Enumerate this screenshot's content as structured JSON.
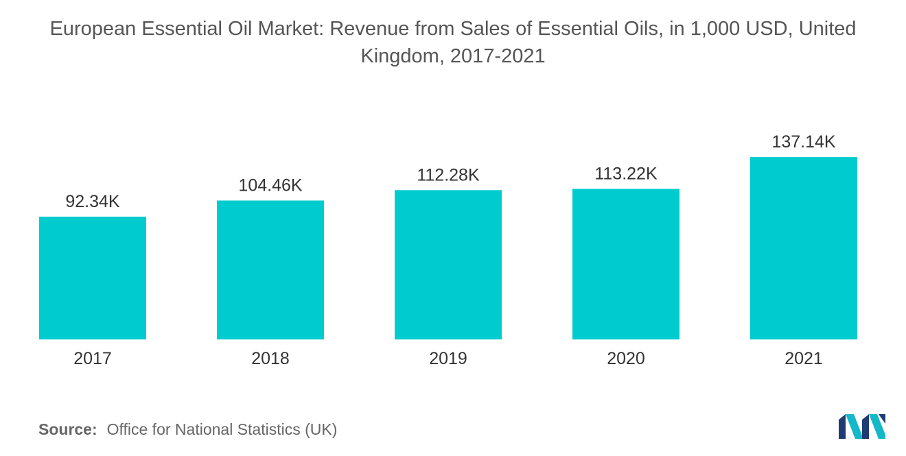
{
  "title": "European Essential Oil Market: Revenue from Sales of Essential Oils, in 1,000 USD, United Kingdom, 2017-2021",
  "source": {
    "label": "Source:",
    "text": "Office for National Statistics (UK)"
  },
  "logo": {
    "icon": "mordor-intelligence-logo-icon",
    "colors": [
      "#1f3b73",
      "#15b8c8"
    ]
  },
  "chart_data": {
    "type": "bar",
    "title": "European Essential Oil Market: Revenue from Sales of Essential Oils, in 1,000 USD, United Kingdom, 2017-2021",
    "categories": [
      "2017",
      "2018",
      "2019",
      "2020",
      "2021"
    ],
    "values": [
      92.34,
      104.46,
      112.28,
      113.22,
      137.14
    ],
    "value_labels": [
      "92.34K",
      "104.46K",
      "112.28K",
      "113.22K",
      "137.14K"
    ],
    "xlabel": "",
    "ylabel": "",
    "ylim": [
      0,
      150
    ],
    "grid": false,
    "legend": "none",
    "bar_color": "#00cccf",
    "label_color": "#333333"
  }
}
